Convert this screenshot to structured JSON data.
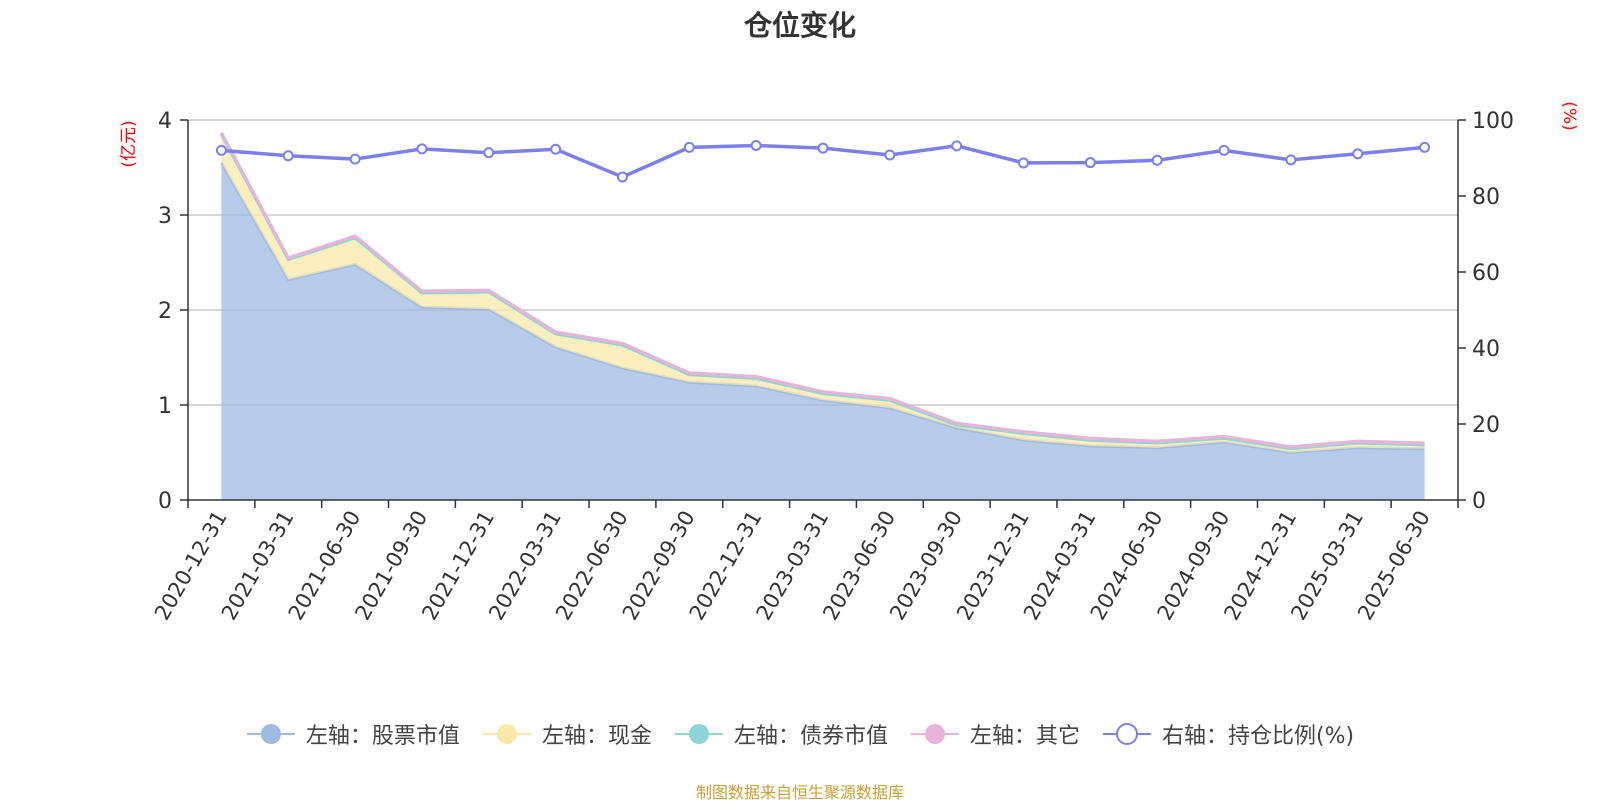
{
  "title": "仓位变化",
  "source_note": "制图数据来自恒生聚源数据库",
  "colors": {
    "stock": "#9fbbe3",
    "cash": "#f9e8aa",
    "bond": "#8fd4d6",
    "other": "#e7b3d9",
    "ratio": "#7b7ff0",
    "unit": "#ff0000",
    "grid": "#cccccc",
    "axis": "#333333"
  },
  "legend": [
    {
      "key": "stock",
      "label": "左轴：股票市值",
      "icon": "filled-circle"
    },
    {
      "key": "cash",
      "label": "左轴：现金",
      "icon": "filled-circle"
    },
    {
      "key": "bond",
      "label": "左轴：债券市值",
      "icon": "filled-circle"
    },
    {
      "key": "other",
      "label": "左轴：其它",
      "icon": "filled-circle"
    },
    {
      "key": "ratio",
      "label": "右轴：持仓比例(%)",
      "icon": "hollow-circle"
    }
  ],
  "chart_data": {
    "type": "area",
    "stacked": true,
    "categories": [
      "2020-12-31",
      "2021-03-31",
      "2021-06-30",
      "2021-09-30",
      "2021-12-31",
      "2022-03-31",
      "2022-06-30",
      "2022-09-30",
      "2022-12-31",
      "2023-03-31",
      "2023-06-30",
      "2023-09-30",
      "2023-12-31",
      "2024-03-31",
      "2024-06-30",
      "2024-09-30",
      "2024-12-31",
      "2025-03-31",
      "2025-06-30"
    ],
    "left_axis": {
      "unit": "(亿元)",
      "ylim": [
        0,
        4
      ],
      "ticks": [
        0,
        1,
        2,
        3,
        4
      ]
    },
    "right_axis": {
      "unit": "(%)",
      "ylim": [
        0,
        100
      ],
      "ticks": [
        0,
        20,
        40,
        60,
        80,
        100
      ]
    },
    "grid": true,
    "legend_position": "bottom",
    "series": [
      {
        "key": "stock",
        "name": "左轴：股票市值",
        "axis": "left",
        "type": "area",
        "values": [
          3.55,
          2.32,
          2.48,
          2.03,
          2.01,
          1.61,
          1.39,
          1.24,
          1.2,
          1.05,
          0.97,
          0.76,
          0.63,
          0.57,
          0.55,
          0.61,
          0.5,
          0.55,
          0.54
        ]
      },
      {
        "key": "cash",
        "name": "左轴：现金",
        "axis": "left",
        "type": "area",
        "values": [
          0.3,
          0.21,
          0.28,
          0.15,
          0.18,
          0.14,
          0.24,
          0.08,
          0.08,
          0.07,
          0.08,
          0.03,
          0.07,
          0.06,
          0.05,
          0.04,
          0.04,
          0.05,
          0.04
        ]
      },
      {
        "key": "bond",
        "name": "左轴：债券市值",
        "axis": "left",
        "type": "area",
        "values": [
          0,
          0,
          0,
          0,
          0,
          0,
          0,
          0,
          0,
          0,
          0,
          0,
          0,
          0,
          0,
          0,
          0,
          0,
          0
        ]
      },
      {
        "key": "other",
        "name": "左轴：其它",
        "axis": "left",
        "type": "area",
        "values": [
          0.02,
          0.02,
          0.02,
          0.02,
          0.02,
          0.02,
          0.02,
          0.02,
          0.02,
          0.02,
          0.02,
          0.02,
          0.02,
          0.02,
          0.02,
          0.02,
          0.02,
          0.02,
          0.02
        ]
      },
      {
        "key": "ratio",
        "name": "右轴：持仓比例(%)",
        "axis": "right",
        "type": "line",
        "values": [
          92.0,
          90.6,
          89.7,
          92.4,
          91.4,
          92.3,
          85.0,
          92.8,
          93.3,
          92.6,
          90.8,
          93.2,
          88.7,
          88.8,
          89.4,
          92.0,
          89.5,
          91.1,
          92.8
        ]
      }
    ]
  }
}
